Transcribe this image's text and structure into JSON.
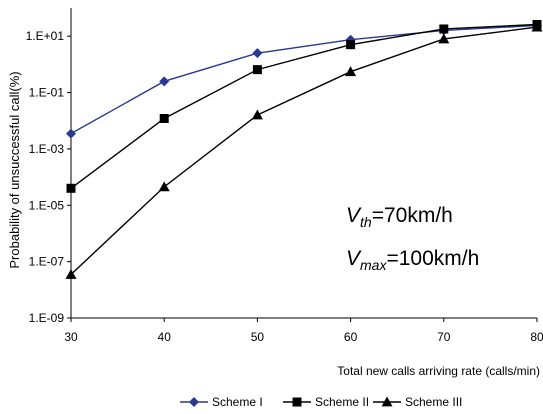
{
  "chart_data": {
    "type": "line",
    "title": "",
    "xlabel": "Total new calls arriving rate (calls/min)",
    "ylabel": "Probability of unsuccessful call(%)",
    "y_scale": "log",
    "xlim": [
      30,
      80
    ],
    "ylim": [
      1e-09,
      100
    ],
    "x": [
      30,
      40,
      50,
      60,
      70,
      80
    ],
    "x_ticks": [
      "30",
      "40",
      "50",
      "60",
      "70",
      "80"
    ],
    "y_ticks": [
      {
        "value": 10,
        "label": "1.E+01"
      },
      {
        "value": 0.1,
        "label": "1.E-01"
      },
      {
        "value": 0.001,
        "label": "1.E-03"
      },
      {
        "value": 1e-05,
        "label": "1.E-05"
      },
      {
        "value": 1e-07,
        "label": "1.E-07"
      },
      {
        "value": 1e-09,
        "label": "1.E-09"
      }
    ],
    "series": [
      {
        "name": "Scheme I",
        "marker": "diamond",
        "color": "#2b3990",
        "values": [
          0.0035,
          0.25,
          2.5,
          7.5,
          16,
          24
        ]
      },
      {
        "name": "Scheme II",
        "marker": "square",
        "color": "#000000",
        "values": [
          4e-05,
          0.012,
          0.65,
          5,
          18,
          26
        ]
      },
      {
        "name": "Scheme III",
        "marker": "triangle",
        "color": "#000000",
        "values": [
          3.5e-08,
          4.5e-05,
          0.016,
          0.55,
          8,
          21
        ]
      }
    ],
    "annotations": {
      "vth": {
        "main": "V",
        "sub": "th",
        "rest": "=70km/h"
      },
      "vmax": {
        "main": "V",
        "sub": "max",
        "rest": "=100km/h"
      }
    },
    "legend_position": "bottom"
  }
}
